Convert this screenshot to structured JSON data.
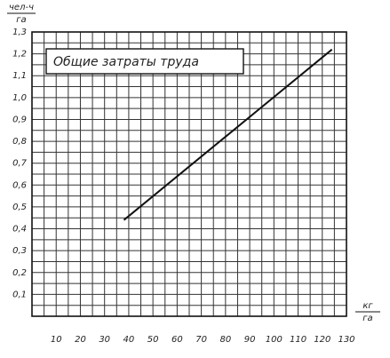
{
  "chart_data": {
    "type": "line",
    "title": "Общие затраты труда",
    "ylabel": {
      "numerator": "чел-ч",
      "denominator": "га"
    },
    "xlabel": {
      "numerator": "кг",
      "denominator": "га"
    },
    "x": [
      38,
      124
    ],
    "series": [
      {
        "name": "Общие затраты труда",
        "color": "#111111",
        "values": [
          0.44,
          1.22
        ]
      }
    ],
    "xlim": [
      0,
      130
    ],
    "xticks": [
      10,
      20,
      30,
      40,
      50,
      60,
      70,
      80,
      90,
      100,
      110,
      120,
      130
    ],
    "ylim": [
      0,
      1.3
    ],
    "yticks": [
      {
        "value": 0.1,
        "label": "0,1"
      },
      {
        "value": 0.2,
        "label": "0,2"
      },
      {
        "value": 0.3,
        "label": "0,3"
      },
      {
        "value": 0.4,
        "label": "0,4"
      },
      {
        "value": 0.5,
        "label": "0,5"
      },
      {
        "value": 0.6,
        "label": "0,6"
      },
      {
        "value": 0.7,
        "label": "0,7"
      },
      {
        "value": 0.8,
        "label": "0,8"
      },
      {
        "value": 0.9,
        "label": "0,9"
      },
      {
        "value": 1.0,
        "label": "1,0"
      },
      {
        "value": 1.1,
        "label": "1,1"
      },
      {
        "value": 1.2,
        "label": "1,2"
      },
      {
        "value": 1.3,
        "label": "1,3"
      }
    ],
    "grid": true,
    "minor_grid": true
  }
}
